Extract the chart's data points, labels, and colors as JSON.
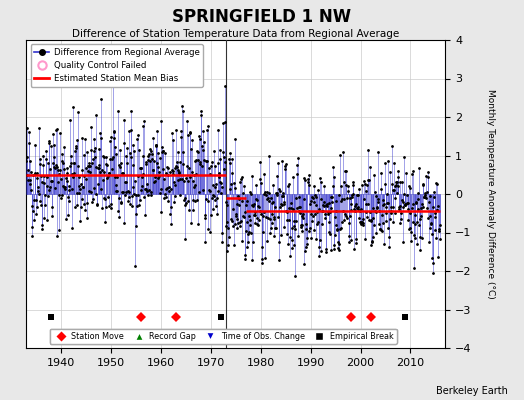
{
  "title": "SPRINGFIELD 1 NW",
  "subtitle": "Difference of Station Temperature Data from Regional Average",
  "ylabel": "Monthly Temperature Anomaly Difference (°C)",
  "ylim": [
    -4,
    4
  ],
  "xlim": [
    1933,
    2017
  ],
  "yticks": [
    -4,
    -3,
    -2,
    -1,
    0,
    1,
    2,
    3,
    4
  ],
  "xticks": [
    1940,
    1950,
    1960,
    1970,
    1980,
    1990,
    2000,
    2010
  ],
  "bg_color": "#e8e8e8",
  "plot_bg_color": "#ffffff",
  "grid_color": "#cccccc",
  "data_line_color": "#3333cc",
  "data_dot_color": "#000000",
  "bias_line_color": "#ff0000",
  "vertical_line_color": "#333333",
  "station_move_years": [
    1956,
    1963,
    1998,
    2002
  ],
  "record_gap_years": [],
  "obs_change_years": [
    1972
  ],
  "empirical_break_years": [
    1938,
    1972,
    2009
  ],
  "vertical_lines": [
    1973.0
  ],
  "bias_segments": [
    {
      "x": [
        1933,
        1973
      ],
      "y": [
        0.5,
        0.5
      ]
    },
    {
      "x": [
        1973,
        1977
      ],
      "y": [
        -0.1,
        -0.1
      ]
    },
    {
      "x": [
        1977,
        2016
      ],
      "y": [
        -0.45,
        -0.45
      ]
    }
  ],
  "seed": 42,
  "gap_start": 1973.0,
  "gap_end": 1977.0
}
